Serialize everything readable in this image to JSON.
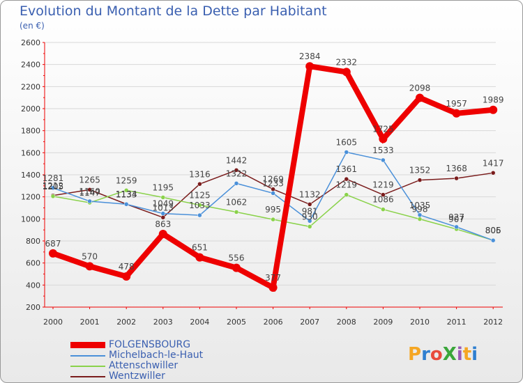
{
  "header": {
    "title": "Evolution du Montant de la Dette par Habitant",
    "subtitle": "(en €)"
  },
  "logo": {
    "text": "ProXiti",
    "letter_colors": [
      "#f5a623",
      "#2f7fd0",
      "#e84b3c",
      "#3aa63a",
      "#9b59b6",
      "#f5a623",
      "#2f7fd0"
    ]
  },
  "chart_data": {
    "type": "line",
    "title": "Evolution du Montant de la Dette par Habitant",
    "subtitle": "(en €)",
    "xlabel": "",
    "ylabel": "",
    "x": [
      "2000",
      "2001",
      "2002",
      "2003",
      "2004",
      "2005",
      "2006",
      "2007",
      "2008",
      "2009",
      "2010",
      "2011",
      "2012"
    ],
    "ylim": [
      200,
      2600
    ],
    "yticks": [
      200,
      400,
      600,
      800,
      1000,
      1200,
      1400,
      1600,
      1800,
      2000,
      2200,
      2400,
      2600
    ],
    "grid": true,
    "legend_position": "bottom-left",
    "series": [
      {
        "name": "FOLGENSBOURG",
        "color": "#ee0000",
        "values": [
          687,
          570,
          478,
          863,
          651,
          556,
          377,
          2384,
          2332,
          1725,
          2098,
          1957,
          1989
        ]
      },
      {
        "name": "Michelbach-le-Haut",
        "color": "#4a90d9",
        "values": [
          1281,
          1160,
          1133,
          1049,
          1033,
          1322,
          1233,
          981,
          1605,
          1533,
          1035,
          927,
          805
        ]
      },
      {
        "name": "Attenschwiller",
        "color": "#8ad24a",
        "values": [
          1205,
          1147,
          1259,
          1195,
          1125,
          1062,
          995,
          930,
          1219,
          1086,
          998,
          907,
          806
        ]
      },
      {
        "name": "Wentzwiller",
        "color": "#7a1c1c",
        "values": [
          1212,
          1265,
          1134,
          1013,
          1316,
          1442,
          1269,
          1132,
          1361,
          1219,
          1352,
          1368,
          1417
        ]
      }
    ]
  }
}
